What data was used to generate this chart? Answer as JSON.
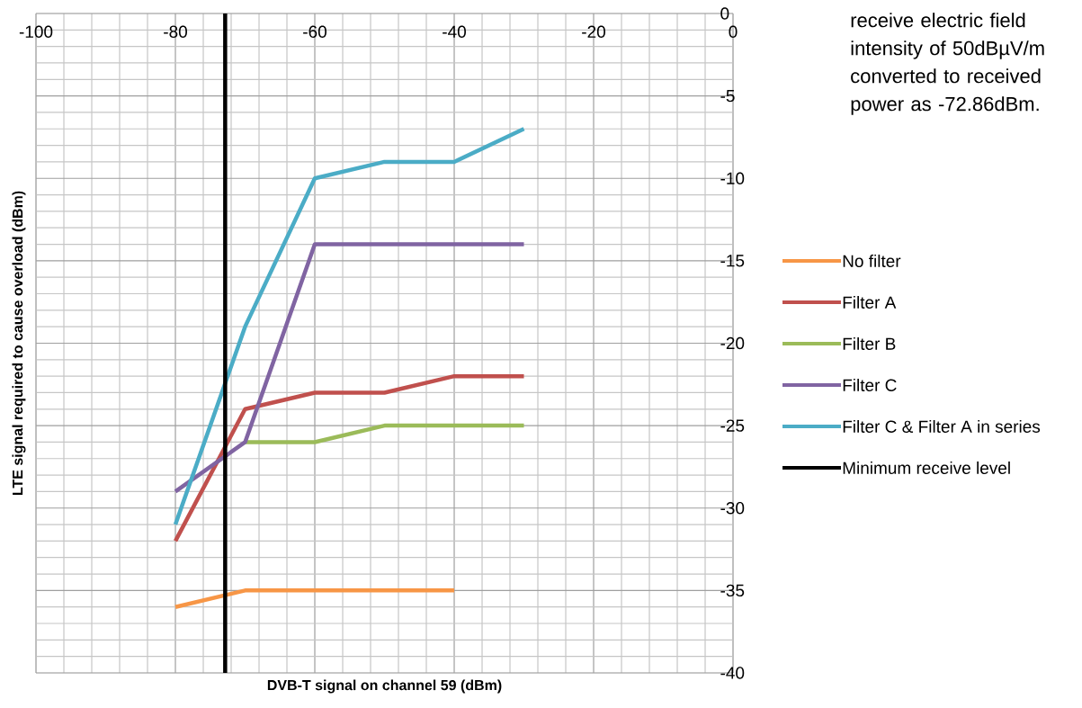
{
  "chart_data": {
    "type": "line",
    "xlabel": "DVB-T signal on channel 59 (dBm)",
    "ylabel": "LTE signal required to cause overload (dBm)",
    "x": [
      -80,
      -70,
      -60,
      -50,
      -40,
      -30
    ],
    "series": [
      {
        "name": "No filter",
        "color": "#f79646",
        "values": [
          -36,
          -35,
          -35,
          -35,
          -35,
          null
        ]
      },
      {
        "name": "Filter A",
        "color": "#c0504d",
        "values": [
          -32,
          -24,
          -23,
          -23,
          -22,
          -22
        ]
      },
      {
        "name": "Filter B",
        "color": "#9bbb59",
        "values": [
          null,
          -26,
          -26,
          -25,
          -25,
          -25
        ]
      },
      {
        "name": "Filter C",
        "color": "#8064a2",
        "values": [
          -29,
          -26,
          -14,
          -14,
          -14,
          -14
        ]
      },
      {
        "name": "Filter C & Filter A in series",
        "color": "#4bacc6",
        "values": [
          -31,
          -19,
          -10,
          -9,
          -9,
          -7
        ]
      },
      {
        "name": "Minimum receive level",
        "color": "#000000",
        "x": [
          -72.86,
          -72.86
        ],
        "values": [
          0,
          -40
        ]
      }
    ],
    "annotations": [
      "receive electric field intensity of 50dBµV/m converted to received power as -72.86dBm."
    ],
    "xlim": [
      -100,
      0
    ],
    "ylim": [
      -40,
      0
    ],
    "xticks": [
      -100,
      -80,
      -60,
      -40,
      -20,
      0
    ],
    "yticks": [
      -40,
      -35,
      -30,
      -25,
      -20,
      -15,
      -10,
      -5,
      0
    ],
    "grid": true,
    "legend": "right",
    "marker": "none",
    "line_style": "solid"
  }
}
